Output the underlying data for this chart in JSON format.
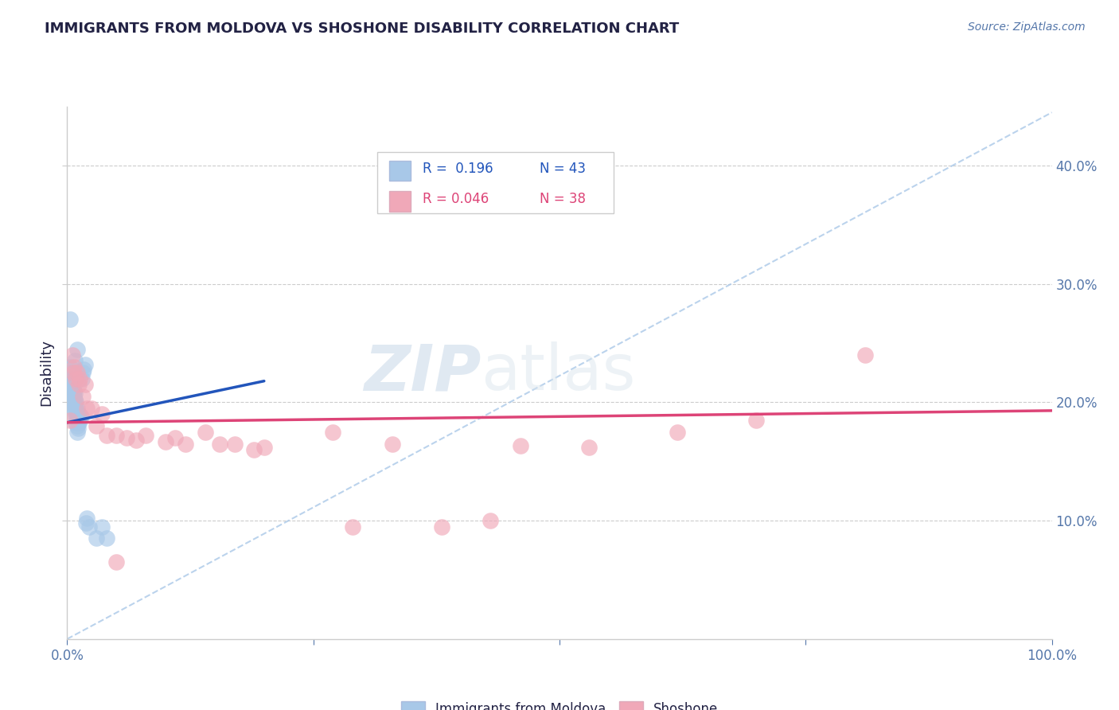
{
  "title": "IMMIGRANTS FROM MOLDOVA VS SHOSHONE DISABILITY CORRELATION CHART",
  "source": "Source: ZipAtlas.com",
  "ylabel": "Disability",
  "legend_r1": "R =  0.196",
  "legend_n1": "N = 43",
  "legend_r2": "R = 0.046",
  "legend_n2": "N = 38",
  "xlim": [
    0,
    1.0
  ],
  "ylim": [
    0,
    0.45
  ],
  "xticks": [
    0.0,
    0.5,
    1.0
  ],
  "xticklabels": [
    "0.0%",
    "",
    "100.0%"
  ],
  "yticks": [
    0.1,
    0.2,
    0.3,
    0.4
  ],
  "yticklabels": [
    "10.0%",
    "20.0%",
    "30.0%",
    "40.0%"
  ],
  "watermark_zip": "ZIP",
  "watermark_atlas": "atlas",
  "blue_color": "#a8c8e8",
  "pink_color": "#f0a8b8",
  "blue_line_color": "#2255bb",
  "pink_line_color": "#dd4477",
  "dashed_line_color": "#aac8e8",
  "title_color": "#222244",
  "axis_label_color": "#222244",
  "tick_color": "#5577aa",
  "source_color": "#5577aa",
  "blue_scatter": [
    [
      0.003,
      0.27
    ],
    [
      0.008,
      0.235
    ],
    [
      0.01,
      0.245
    ],
    [
      0.003,
      0.23
    ],
    [
      0.004,
      0.225
    ],
    [
      0.005,
      0.22
    ],
    [
      0.005,
      0.215
    ],
    [
      0.006,
      0.218
    ],
    [
      0.006,
      0.212
    ],
    [
      0.006,
      0.207
    ],
    [
      0.007,
      0.21
    ],
    [
      0.007,
      0.205
    ],
    [
      0.007,
      0.2
    ],
    [
      0.007,
      0.195
    ],
    [
      0.008,
      0.208
    ],
    [
      0.008,
      0.202
    ],
    [
      0.008,
      0.197
    ],
    [
      0.008,
      0.192
    ],
    [
      0.009,
      0.2
    ],
    [
      0.009,
      0.195
    ],
    [
      0.009,
      0.188
    ],
    [
      0.009,
      0.183
    ],
    [
      0.01,
      0.195
    ],
    [
      0.01,
      0.19
    ],
    [
      0.01,
      0.185
    ],
    [
      0.01,
      0.18
    ],
    [
      0.01,
      0.175
    ],
    [
      0.011,
      0.185
    ],
    [
      0.011,
      0.178
    ],
    [
      0.012,
      0.19
    ],
    [
      0.012,
      0.183
    ],
    [
      0.013,
      0.185
    ],
    [
      0.014,
      0.188
    ],
    [
      0.015,
      0.22
    ],
    [
      0.016,
      0.225
    ],
    [
      0.017,
      0.228
    ],
    [
      0.018,
      0.232
    ],
    [
      0.019,
      0.098
    ],
    [
      0.02,
      0.102
    ],
    [
      0.022,
      0.095
    ],
    [
      0.03,
      0.085
    ],
    [
      0.035,
      0.095
    ],
    [
      0.04,
      0.085
    ]
  ],
  "pink_scatter": [
    [
      0.003,
      0.185
    ],
    [
      0.005,
      0.24
    ],
    [
      0.006,
      0.225
    ],
    [
      0.007,
      0.23
    ],
    [
      0.009,
      0.22
    ],
    [
      0.01,
      0.225
    ],
    [
      0.012,
      0.215
    ],
    [
      0.013,
      0.22
    ],
    [
      0.016,
      0.205
    ],
    [
      0.018,
      0.215
    ],
    [
      0.02,
      0.195
    ],
    [
      0.025,
      0.195
    ],
    [
      0.03,
      0.18
    ],
    [
      0.035,
      0.19
    ],
    [
      0.04,
      0.172
    ],
    [
      0.05,
      0.172
    ],
    [
      0.06,
      0.17
    ],
    [
      0.07,
      0.168
    ],
    [
      0.08,
      0.172
    ],
    [
      0.1,
      0.167
    ],
    [
      0.11,
      0.17
    ],
    [
      0.12,
      0.165
    ],
    [
      0.14,
      0.175
    ],
    [
      0.155,
      0.165
    ],
    [
      0.17,
      0.165
    ],
    [
      0.19,
      0.16
    ],
    [
      0.2,
      0.162
    ],
    [
      0.27,
      0.175
    ],
    [
      0.29,
      0.095
    ],
    [
      0.33,
      0.165
    ],
    [
      0.38,
      0.095
    ],
    [
      0.43,
      0.1
    ],
    [
      0.46,
      0.163
    ],
    [
      0.53,
      0.162
    ],
    [
      0.62,
      0.175
    ],
    [
      0.7,
      0.185
    ],
    [
      0.81,
      0.24
    ],
    [
      0.05,
      0.065
    ]
  ],
  "blue_line": [
    [
      0.0,
      0.183
    ],
    [
      0.2,
      0.218
    ]
  ],
  "pink_line": [
    [
      0.0,
      0.183
    ],
    [
      1.0,
      0.193
    ]
  ],
  "dashed_line": [
    [
      0.0,
      0.0
    ],
    [
      1.0,
      0.445
    ]
  ]
}
